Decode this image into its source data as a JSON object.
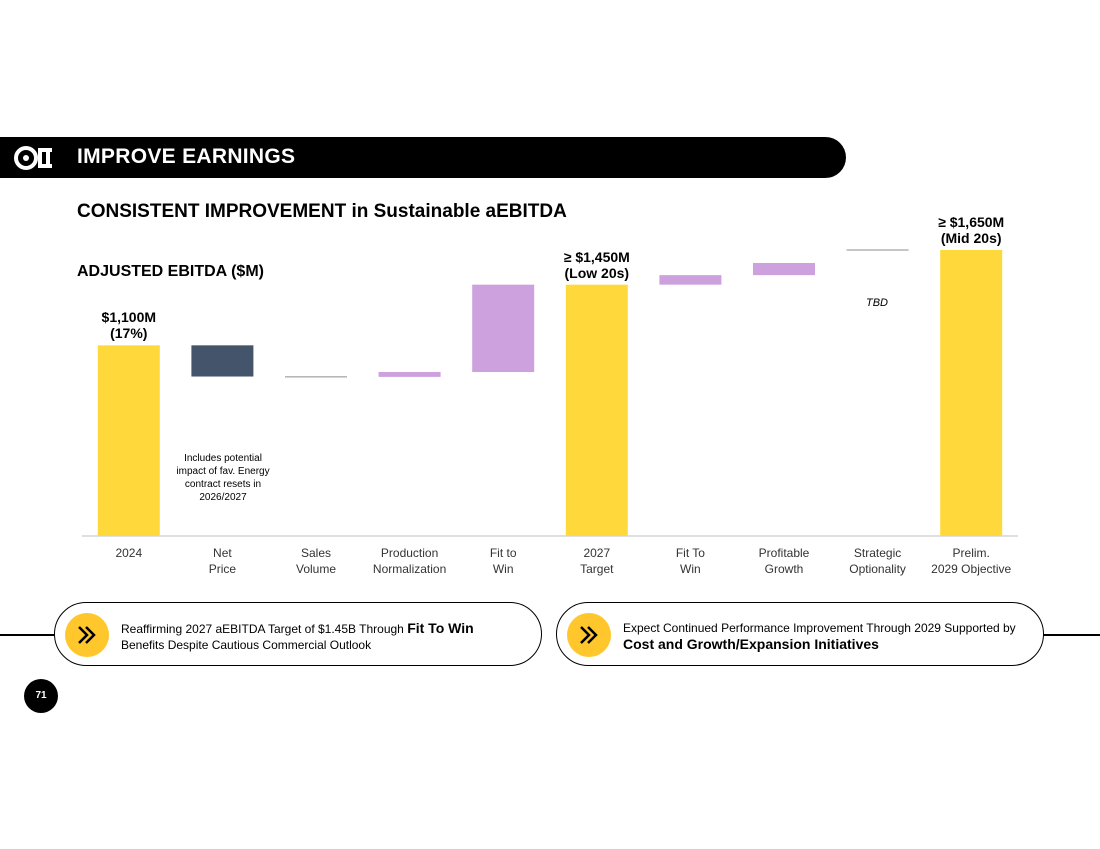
{
  "header": {
    "banner_title": "IMPROVE EARNINGS",
    "subtitle_bold": "CONSISTENT IMPROVEMENT",
    "subtitle_rest": " in Sustainable aEBITDA"
  },
  "colors": {
    "yellow": "#FFD93B",
    "navy": "#44546A",
    "purple": "#CDA0DE",
    "black": "#000000"
  },
  "chart_data": {
    "type": "bar",
    "subtype": "waterfall",
    "title": "ADJUSTED EBITDA ($M)",
    "categories": [
      [
        "2024"
      ],
      [
        "Net",
        "Price"
      ],
      [
        "Sales",
        "Volume"
      ],
      [
        "Production",
        "Normalization"
      ],
      [
        "Fit to",
        "Win"
      ],
      [
        "2027",
        "Target"
      ],
      [
        "Fit To",
        "Win"
      ],
      [
        "Profitable",
        "Growth"
      ],
      [
        "Strategic",
        "Optionality"
      ],
      [
        "Prelim.",
        "2029 Objective"
      ]
    ],
    "bars": [
      {
        "kind": "total",
        "start": 0,
        "end": 1100,
        "color": "yellow"
      },
      {
        "kind": "delta",
        "start": 1100,
        "end": 920,
        "color": "navy"
      },
      {
        "kind": "delta",
        "start": 920,
        "end": 918,
        "color": "gray"
      },
      {
        "kind": "delta",
        "start": 918,
        "end": 946,
        "color": "purple"
      },
      {
        "kind": "delta",
        "start": 946,
        "end": 1450,
        "color": "purple"
      },
      {
        "kind": "total",
        "start": 0,
        "end": 1450,
        "color": "yellow"
      },
      {
        "kind": "delta",
        "start": 1450,
        "end": 1505,
        "color": "purple"
      },
      {
        "kind": "delta",
        "start": 1505,
        "end": 1575,
        "color": "purple"
      },
      {
        "kind": "delta",
        "start": 1575,
        "end": 1650,
        "color": "gray"
      },
      {
        "kind": "total",
        "start": 0,
        "end": 1650,
        "color": "yellow"
      }
    ],
    "callouts": {
      "bar0": [
        "$1,100M",
        "(17%)"
      ],
      "bar5": [
        "≥ $1,450M",
        "(Low 20s)"
      ],
      "bar9": [
        "≥ $1,650M",
        "(Mid 20s)"
      ]
    },
    "tbd_label": "TBD",
    "note": [
      "Includes potential",
      "impact of fav. Energy",
      "contract resets in",
      "2026/2027"
    ],
    "ylim": [
      0,
      1800
    ]
  },
  "footer": {
    "pill1_text": "Reaffirming 2027 aEBITDA Target of $1.45B Through ",
    "pill1_bold": "Fit To Win",
    "pill1_text2": "Benefits Despite Cautious Commercial Outlook",
    "pill2_text": "Expect Continued Performance Improvement Through 2029 Supported by ",
    "pill2_bold": "Cost and Growth/Expansion Initiatives",
    "page_number": "71"
  }
}
